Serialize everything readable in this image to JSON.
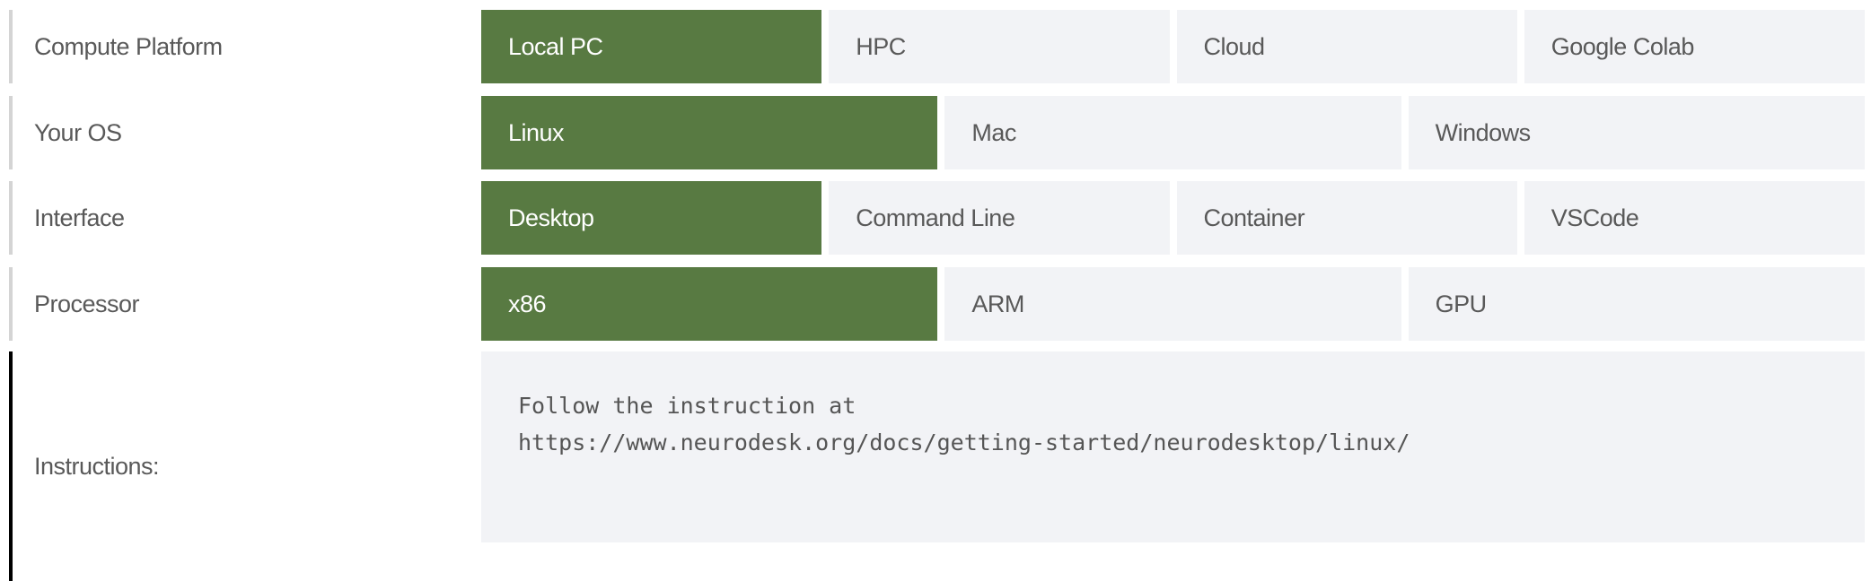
{
  "rows": [
    {
      "label": "Compute Platform",
      "options": [
        "Local PC",
        "HPC",
        "Cloud",
        "Google Colab"
      ],
      "selected": "Local PC"
    },
    {
      "label": "Your OS",
      "options": [
        "Linux",
        "Mac",
        "Windows"
      ],
      "selected": "Linux"
    },
    {
      "label": "Interface",
      "options": [
        "Desktop",
        "Command Line",
        "Container",
        "VSCode"
      ],
      "selected": "Desktop"
    },
    {
      "label": "Processor",
      "options": [
        "x86",
        "ARM",
        "GPU"
      ],
      "selected": "x86"
    }
  ],
  "instructions": {
    "label": "Instructions:",
    "lines": [
      "Follow the instruction at",
      "https://www.neurodesk.org/docs/getting-started/neurodesktop/linux/"
    ]
  },
  "colors": {
    "selected": "#587a42",
    "unselected": "#f2f3f6"
  }
}
